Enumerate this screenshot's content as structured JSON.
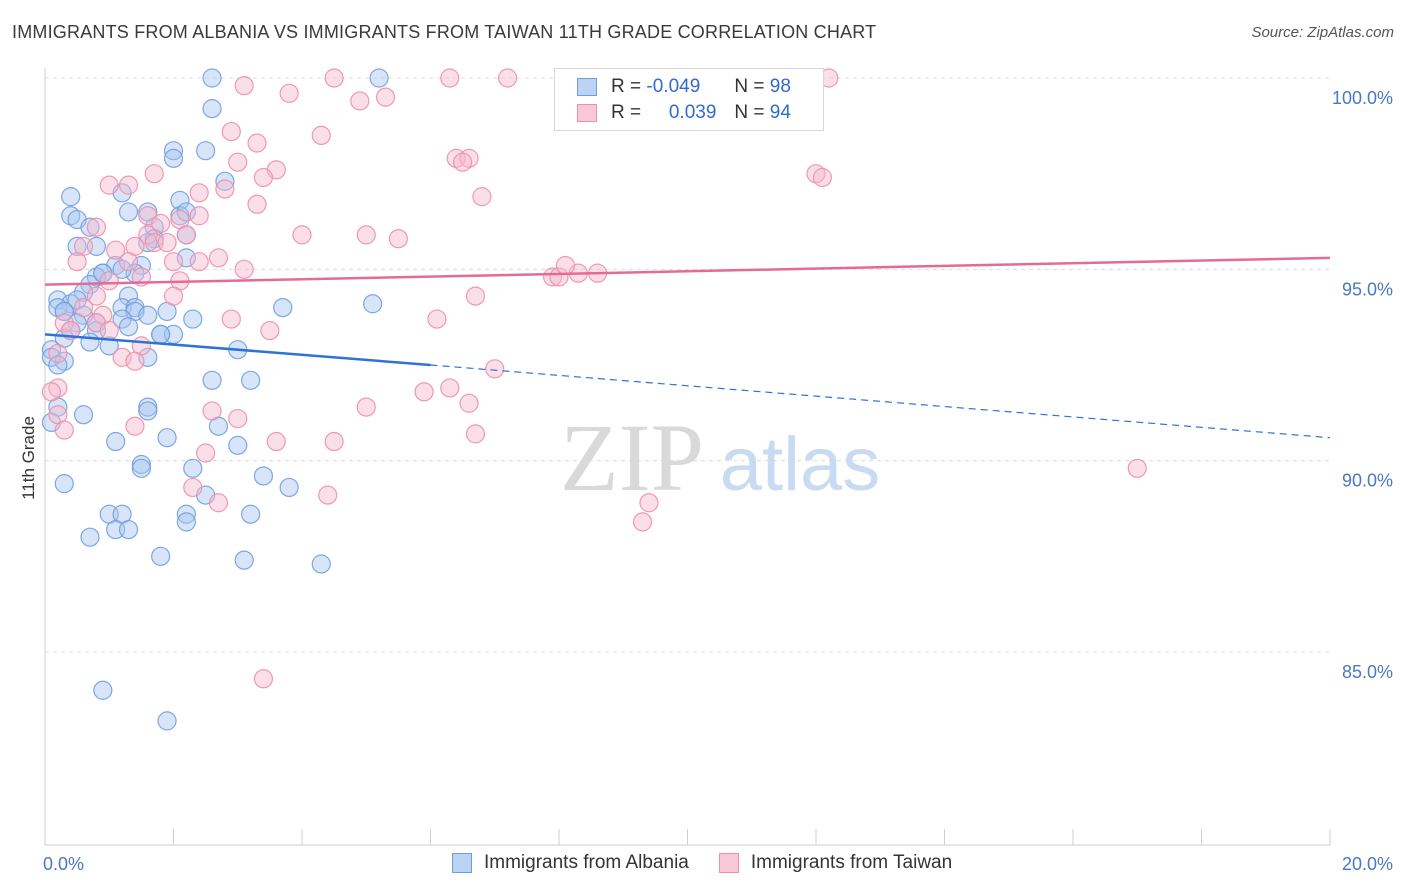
{
  "title": "IMMIGRANTS FROM ALBANIA VS IMMIGRANTS FROM TAIWAN 11TH GRADE CORRELATION CHART",
  "source": "Source: ZipAtlas.com",
  "watermark": {
    "zip": "ZIP",
    "atlas": "atlas"
  },
  "legend": {
    "r_label": "R =",
    "n_label": "N =",
    "albania": {
      "r": "-0.049",
      "n": "98"
    },
    "taiwan": {
      "r": "0.039",
      "n": "94"
    }
  },
  "bottom_legend": {
    "albania": "Immigrants from Albania",
    "taiwan": "Immigrants from Taiwan"
  },
  "colors": {
    "albania_fill": "#a9c6ef",
    "albania_stroke": "#6f9ee0",
    "albania_line": "#2f73d6",
    "taiwan_fill": "#f7b8cb",
    "taiwan_stroke": "#ec8fac",
    "taiwan_line": "#e46b96",
    "tick_text": "#4a78c2"
  },
  "chart_data": {
    "type": "scatter",
    "title": "IMMIGRANTS FROM ALBANIA VS IMMIGRANTS FROM TAIWAN 11TH GRADE CORRELATION CHART",
    "xlabel": "",
    "ylabel": "11th Grade",
    "xlim": [
      0,
      20
    ],
    "ylim": [
      80.5,
      100.5
    ],
    "x_tick_labels": [
      "0.0%",
      "20.0%"
    ],
    "y_ticks": [
      85,
      90,
      95,
      100
    ],
    "y_tick_labels": [
      "85.0%",
      "90.0%",
      "95.0%",
      "100.0%"
    ],
    "grid": true,
    "series": [
      {
        "name": "Immigrants from Albania",
        "trend": {
          "x0": 0,
          "y0": 93.3,
          "x1": 6.0,
          "y1": 92.5,
          "dashed_to_x": 20,
          "dashed_to_y": 90.6
        },
        "points": [
          [
            2.6,
            100
          ],
          [
            5.2,
            100
          ],
          [
            2.6,
            99.2
          ],
          [
            2.0,
            98.1
          ],
          [
            2.5,
            98.1
          ],
          [
            2.0,
            97.9
          ],
          [
            0.4,
            96.9
          ],
          [
            1.2,
            97.0
          ],
          [
            2.8,
            97.3
          ],
          [
            2.1,
            96.8
          ],
          [
            1.3,
            96.5
          ],
          [
            0.4,
            96.4
          ],
          [
            0.5,
            96.3
          ],
          [
            1.6,
            96.5
          ],
          [
            2.1,
            96.4
          ],
          [
            0.7,
            96.1
          ],
          [
            1.7,
            96.1
          ],
          [
            2.2,
            95.9
          ],
          [
            0.5,
            95.6
          ],
          [
            0.8,
            95.6
          ],
          [
            1.7,
            95.8
          ],
          [
            1.6,
            95.7
          ],
          [
            2.2,
            95.3
          ],
          [
            1.5,
            95.1
          ],
          [
            1.1,
            95.1
          ],
          [
            0.9,
            94.9
          ],
          [
            0.8,
            94.8
          ],
          [
            1.4,
            94.9
          ],
          [
            0.7,
            94.6
          ],
          [
            0.6,
            94.4
          ],
          [
            0.2,
            94.2
          ],
          [
            0.4,
            94.1
          ],
          [
            1.3,
            94.3
          ],
          [
            0.2,
            94.0
          ],
          [
            0.3,
            93.9
          ],
          [
            0.6,
            93.8
          ],
          [
            1.2,
            94.0
          ],
          [
            1.4,
            94.0
          ],
          [
            1.4,
            93.9
          ],
          [
            1.9,
            93.9
          ],
          [
            3.7,
            94.0
          ],
          [
            5.1,
            94.1
          ],
          [
            0.5,
            93.6
          ],
          [
            0.8,
            93.6
          ],
          [
            1.2,
            93.7
          ],
          [
            1.6,
            93.8
          ],
          [
            0.4,
            93.4
          ],
          [
            0.8,
            93.4
          ],
          [
            1.3,
            93.5
          ],
          [
            1.8,
            93.3
          ],
          [
            2.0,
            93.3
          ],
          [
            2.3,
            93.7
          ],
          [
            0.3,
            93.2
          ],
          [
            0.7,
            93.1
          ],
          [
            0.1,
            92.9
          ],
          [
            0.1,
            92.7
          ],
          [
            0.3,
            92.6
          ],
          [
            1.6,
            92.7
          ],
          [
            3.0,
            92.9
          ],
          [
            0.2,
            92.5
          ],
          [
            2.6,
            92.1
          ],
          [
            3.2,
            92.1
          ],
          [
            0.2,
            91.4
          ],
          [
            0.6,
            91.2
          ],
          [
            1.6,
            91.4
          ],
          [
            1.6,
            91.3
          ],
          [
            0.1,
            91.0
          ],
          [
            2.7,
            90.9
          ],
          [
            1.1,
            90.5
          ],
          [
            1.9,
            90.6
          ],
          [
            3.0,
            90.4
          ],
          [
            1.5,
            89.9
          ],
          [
            1.5,
            89.8
          ],
          [
            2.3,
            89.8
          ],
          [
            3.4,
            89.6
          ],
          [
            0.3,
            89.4
          ],
          [
            2.5,
            89.1
          ],
          [
            3.8,
            89.3
          ],
          [
            1.0,
            88.6
          ],
          [
            1.2,
            88.6
          ],
          [
            2.2,
            88.6
          ],
          [
            2.2,
            88.4
          ],
          [
            3.2,
            88.6
          ],
          [
            1.1,
            88.2
          ],
          [
            1.3,
            88.2
          ],
          [
            0.7,
            88.0
          ],
          [
            1.8,
            87.5
          ],
          [
            3.1,
            87.4
          ],
          [
            4.3,
            87.3
          ],
          [
            0.9,
            84.0
          ],
          [
            1.9,
            83.2
          ],
          [
            1.8,
            93.3
          ],
          [
            1.0,
            93.0
          ],
          [
            0.3,
            93.9
          ],
          [
            1.2,
            95.0
          ],
          [
            2.2,
            96.5
          ],
          [
            0.5,
            94.2
          ],
          [
            0.9,
            94.9
          ]
        ]
      },
      {
        "name": "Immigrants from Taiwan",
        "trend": {
          "x0": 0,
          "y0": 94.6,
          "x1": 20,
          "y1": 95.3
        },
        "points": [
          [
            4.5,
            100
          ],
          [
            6.3,
            100
          ],
          [
            7.2,
            100
          ],
          [
            12.2,
            100
          ],
          [
            3.1,
            99.8
          ],
          [
            3.8,
            99.6
          ],
          [
            4.9,
            99.4
          ],
          [
            5.3,
            99.5
          ],
          [
            2.9,
            98.6
          ],
          [
            4.3,
            98.5
          ],
          [
            3.3,
            98.3
          ],
          [
            3.0,
            97.8
          ],
          [
            3.6,
            97.6
          ],
          [
            6.4,
            97.9
          ],
          [
            6.6,
            97.9
          ],
          [
            6.5,
            97.8
          ],
          [
            1.7,
            97.5
          ],
          [
            3.4,
            97.4
          ],
          [
            12.0,
            97.5
          ],
          [
            12.1,
            97.4
          ],
          [
            1.0,
            97.2
          ],
          [
            1.3,
            97.2
          ],
          [
            2.4,
            97.0
          ],
          [
            2.8,
            97.1
          ],
          [
            6.8,
            96.9
          ],
          [
            3.3,
            96.7
          ],
          [
            1.6,
            96.4
          ],
          [
            2.1,
            96.3
          ],
          [
            2.4,
            96.4
          ],
          [
            0.8,
            96.1
          ],
          [
            1.6,
            95.9
          ],
          [
            1.8,
            96.2
          ],
          [
            2.2,
            95.9
          ],
          [
            4.0,
            95.9
          ],
          [
            5.0,
            95.9
          ],
          [
            5.5,
            95.8
          ],
          [
            0.6,
            95.6
          ],
          [
            1.1,
            95.5
          ],
          [
            1.4,
            95.6
          ],
          [
            1.7,
            95.7
          ],
          [
            1.9,
            95.7
          ],
          [
            0.5,
            95.2
          ],
          [
            1.3,
            95.2
          ],
          [
            2.0,
            95.2
          ],
          [
            2.4,
            95.2
          ],
          [
            2.7,
            95.3
          ],
          [
            3.1,
            95.0
          ],
          [
            1.0,
            94.7
          ],
          [
            1.5,
            94.8
          ],
          [
            2.1,
            94.7
          ],
          [
            7.9,
            94.8
          ],
          [
            8.0,
            94.8
          ],
          [
            8.3,
            94.9
          ],
          [
            8.6,
            94.9
          ],
          [
            8.1,
            95.1
          ],
          [
            0.8,
            94.3
          ],
          [
            2.0,
            94.3
          ],
          [
            6.7,
            94.3
          ],
          [
            0.6,
            94.0
          ],
          [
            0.9,
            93.8
          ],
          [
            0.3,
            93.6
          ],
          [
            0.8,
            93.6
          ],
          [
            2.9,
            93.7
          ],
          [
            6.1,
            93.7
          ],
          [
            0.4,
            93.4
          ],
          [
            1.0,
            93.4
          ],
          [
            3.5,
            93.4
          ],
          [
            1.5,
            93.0
          ],
          [
            0.2,
            92.8
          ],
          [
            1.2,
            92.7
          ],
          [
            1.4,
            92.6
          ],
          [
            7.0,
            92.4
          ],
          [
            0.2,
            91.9
          ],
          [
            5.9,
            91.8
          ],
          [
            6.3,
            91.9
          ],
          [
            6.6,
            91.5
          ],
          [
            2.6,
            91.3
          ],
          [
            5.0,
            91.4
          ],
          [
            0.2,
            91.2
          ],
          [
            3.0,
            91.1
          ],
          [
            1.4,
            90.9
          ],
          [
            0.3,
            90.8
          ],
          [
            6.7,
            90.7
          ],
          [
            3.6,
            90.5
          ],
          [
            4.5,
            90.5
          ],
          [
            2.5,
            90.2
          ],
          [
            2.3,
            89.3
          ],
          [
            4.4,
            89.1
          ],
          [
            2.7,
            88.9
          ],
          [
            9.4,
            88.9
          ],
          [
            9.3,
            88.4
          ],
          [
            17.0,
            89.8
          ],
          [
            3.4,
            84.3
          ],
          [
            0.1,
            91.8
          ]
        ]
      }
    ]
  }
}
